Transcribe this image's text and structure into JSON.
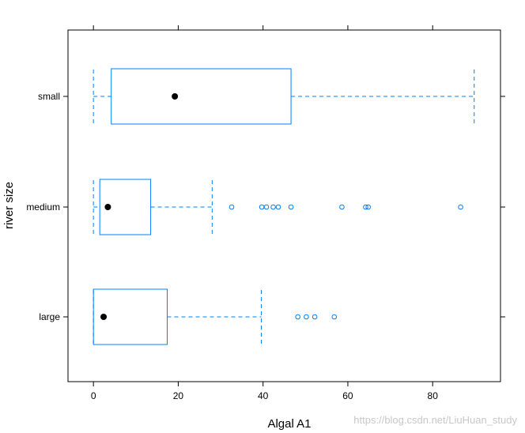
{
  "chart_data": {
    "type": "boxplot",
    "orientation": "horizontal",
    "xlabel": "Algal A1",
    "ylabel": "river size",
    "xlim": [
      -6,
      96
    ],
    "xticks": [
      0,
      20,
      40,
      60,
      80
    ],
    "grid": false,
    "groups": [
      {
        "name": "small",
        "min": 0,
        "q1": 4.2,
        "median": 19.2,
        "q3": 46.6,
        "max": 89.8,
        "outliers": []
      },
      {
        "name": "medium",
        "min": 0,
        "q1": 1.5,
        "median": 3.4,
        "q3": 13.5,
        "max": 28.0,
        "outliers": [
          32.6,
          39.7,
          40.8,
          42.4,
          43.6,
          46.6,
          58.6,
          64.2,
          64.8,
          86.6
        ]
      },
      {
        "name": "large",
        "min": 0,
        "q1": 0.0,
        "median": 2.4,
        "q3": 17.4,
        "max": 39.6,
        "outliers": [
          48.2,
          50.2,
          52.2,
          56.8
        ]
      }
    ],
    "colors": {
      "box": "#0080FF",
      "median_dot": "#000000",
      "frame": "#000000"
    }
  },
  "watermark": "https://blog.csdn.net/LiuHuan_study"
}
